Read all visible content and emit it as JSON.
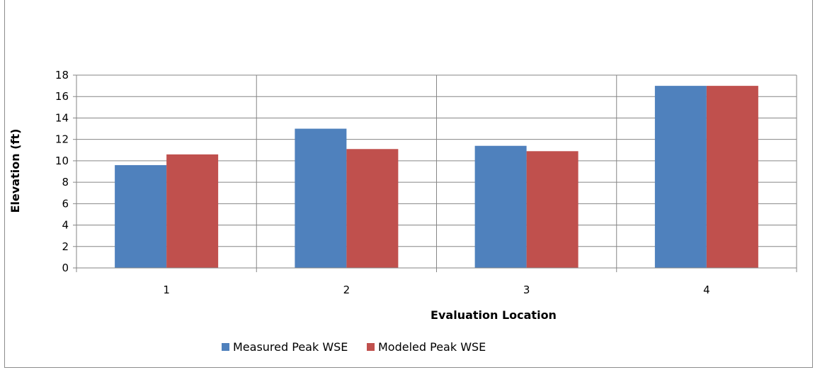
{
  "chart_data": {
    "type": "bar",
    "title": "",
    "xlabel": "Evaluation Location",
    "ylabel": "Elevation (ft)",
    "categories": [
      "1",
      "2",
      "3",
      "4"
    ],
    "ylim": [
      0,
      18
    ],
    "yticks": [
      "0",
      "2",
      "4",
      "6",
      "8",
      "10",
      "12",
      "14",
      "16",
      "18"
    ],
    "grid": true,
    "legend_position": "bottom",
    "series": [
      {
        "name": "Measured Peak WSE",
        "color": "#4f81bd",
        "values": [
          9.6,
          13.0,
          11.4,
          17.0
        ]
      },
      {
        "name": "Modeled Peak WSE",
        "color": "#c0504d",
        "values": [
          10.6,
          11.1,
          10.9,
          17.0
        ]
      }
    ]
  }
}
